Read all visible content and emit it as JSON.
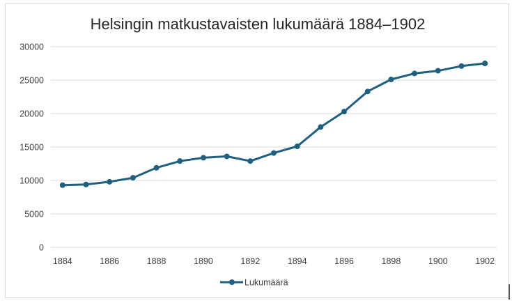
{
  "chart_data": {
    "type": "line",
    "title": "Helsingin matkustavaisten lukumäärä 1884–1902",
    "xlabel": "",
    "ylabel": "",
    "x": [
      1884,
      1885,
      1886,
      1887,
      1888,
      1889,
      1890,
      1891,
      1892,
      1893,
      1894,
      1895,
      1896,
      1897,
      1898,
      1899,
      1900,
      1901,
      1902
    ],
    "x_tick_labels": [
      "1884",
      "1886",
      "1888",
      "1890",
      "1892",
      "1894",
      "1896",
      "1898",
      "1900",
      "1902"
    ],
    "y_tick_labels": [
      "0",
      "5000",
      "10000",
      "15000",
      "20000",
      "25000",
      "30000"
    ],
    "ylim": [
      0,
      30000
    ],
    "grid": "horizontal",
    "legend_position": "bottom",
    "series": [
      {
        "name": "Lukumäärä",
        "color": "#1f5f7f",
        "marker": "circle",
        "values": [
          9300,
          9400,
          9800,
          10400,
          11900,
          12900,
          13400,
          13600,
          12900,
          14100,
          15100,
          18000,
          20300,
          23300,
          25100,
          26000,
          26400,
          27100,
          27500
        ]
      }
    ]
  },
  "colors": {
    "series": "#1f5f7f",
    "grid": "#d9d9d9",
    "text": "#404040",
    "title": "#262626"
  }
}
